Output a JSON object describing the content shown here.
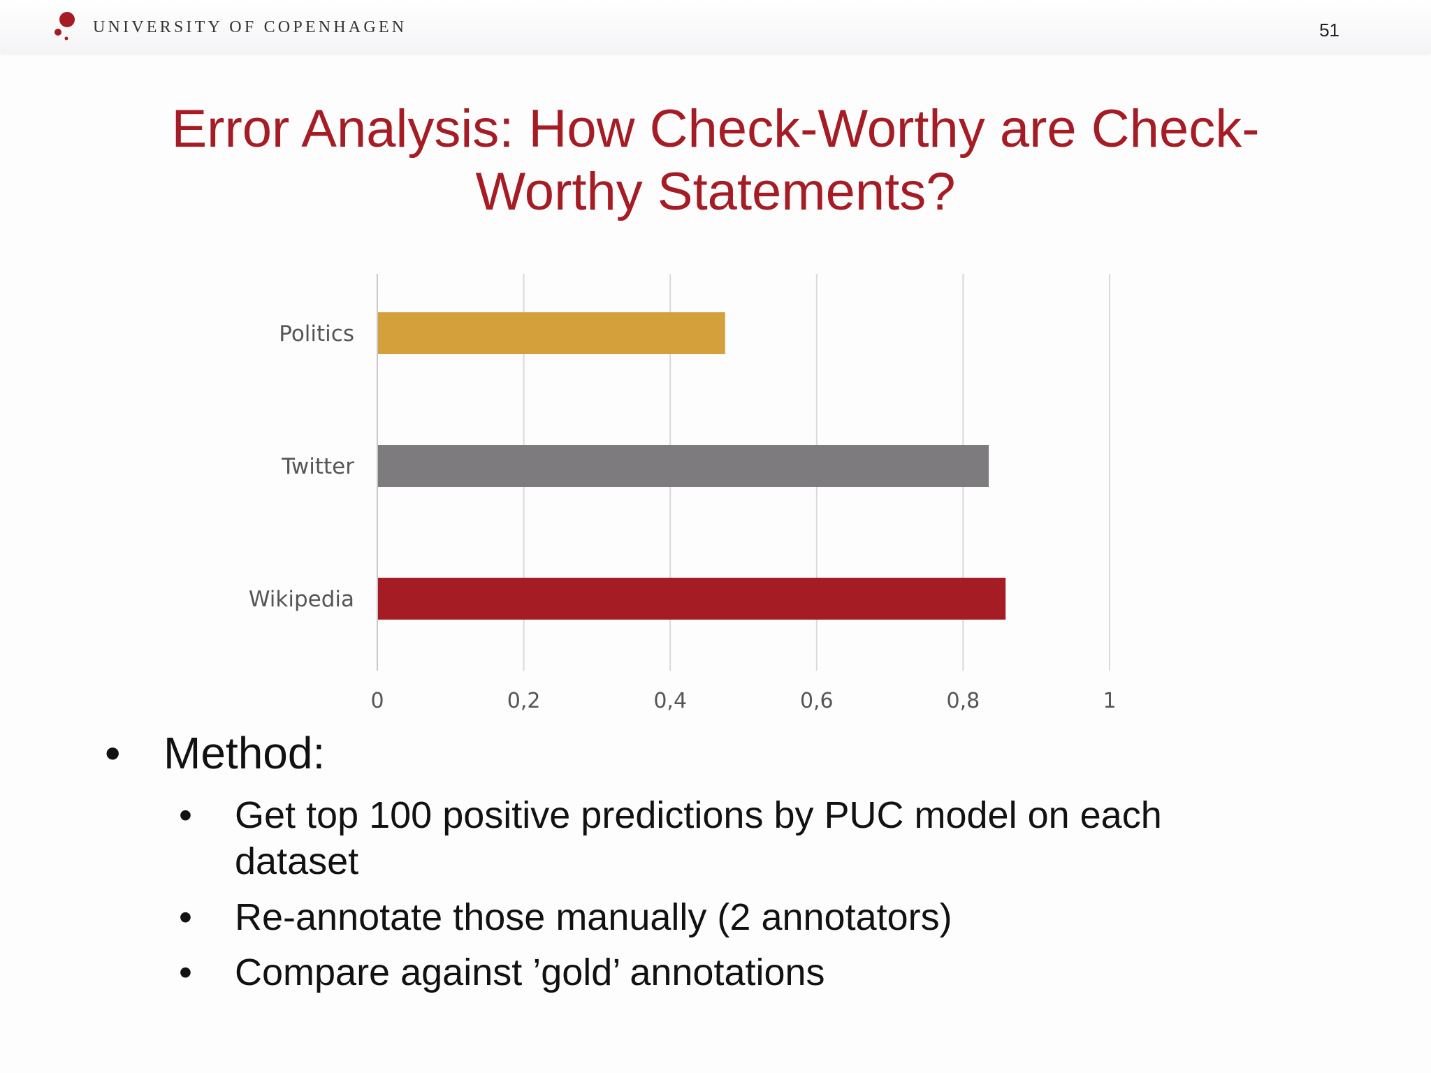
{
  "header": {
    "institution": "UNIVERSITY OF COPENHAGEN",
    "page_number": "51"
  },
  "slide": {
    "title": "Error Analysis: How Check-Worthy are Check-Worthy Statements?"
  },
  "chart_data": {
    "type": "bar",
    "orientation": "horizontal",
    "categories": [
      "Politics",
      "Twitter",
      "Wikipedia"
    ],
    "values": [
      0.475,
      0.835,
      0.858
    ],
    "colors": [
      "#d4a03b",
      "#7d7b7e",
      "#a51c24"
    ],
    "xlim": [
      0,
      1
    ],
    "xticks": [
      "0",
      "0,2",
      "0,4",
      "0,6",
      "0,8",
      "1"
    ],
    "grid": true,
    "title": "",
    "xlabel": "",
    "ylabel": ""
  },
  "bullets": {
    "main": "Method:",
    "sub": [
      "Get top 100 positive predictions by PUC model on each dataset",
      "Re-annotate those manually (2 annotators)",
      "Compare against ’gold’ annotations"
    ]
  },
  "colors": {
    "accent": "#a51c24",
    "text": "#111111"
  }
}
